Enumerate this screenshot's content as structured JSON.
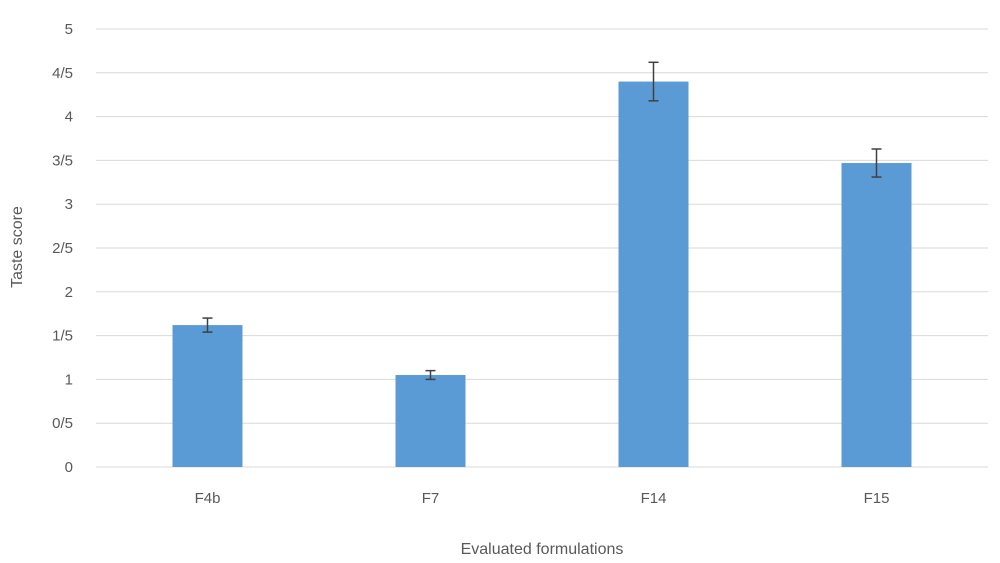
{
  "chart_data": {
    "type": "bar",
    "categories": [
      "F4b",
      "F7",
      "F14",
      "F15"
    ],
    "values": [
      1.62,
      1.05,
      4.4,
      3.47
    ],
    "error": [
      0.08,
      0.05,
      0.22,
      0.16
    ],
    "xlabel": "Evaluated formulations",
    "ylabel": "Taste score",
    "ylim": [
      0,
      5
    ],
    "yticks": [
      0,
      0.5,
      1,
      1.5,
      2,
      2.5,
      3,
      3.5,
      4,
      4.5,
      5
    ],
    "ytick_labels": [
      "0",
      "0/5",
      "1",
      "1/5",
      "2",
      "2/5",
      "3",
      "3/5",
      "4",
      "4/5",
      "5"
    ],
    "grid": true,
    "legend": "none",
    "bar_color": "#5b9bd5"
  }
}
